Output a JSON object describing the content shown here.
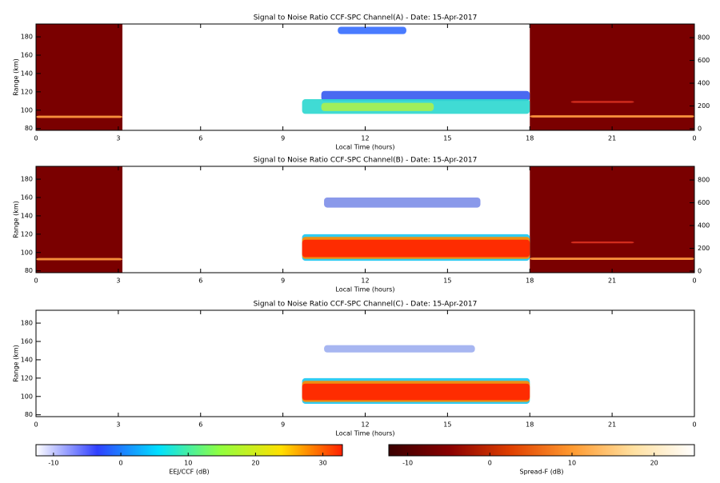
{
  "chart_data": [
    {
      "type": "heatmap",
      "title": "Signal to Noise Ratio CCF-SPC Channel(A) - Date: 15-Apr-2017",
      "xlabel": "Local Time (hours)",
      "ylabel": "Range (km)",
      "xlim": [
        0,
        24
      ],
      "xticks": [
        0,
        3,
        6,
        9,
        12,
        15,
        18,
        21,
        {
          "value": 24,
          "label": "0"
        }
      ],
      "ylim": [
        78,
        194
      ],
      "yticks": [
        80,
        100,
        120,
        140,
        160,
        180
      ],
      "y2lim": [
        -14,
        920
      ],
      "y2ticks": [
        0,
        200,
        400,
        600,
        800
      ],
      "spread_f_blocks": [
        [
          0,
          3.15,
          "#7a0000"
        ],
        [
          18,
          24,
          "#7a0000"
        ]
      ],
      "echoes": [
        [
          0,
          3.15,
          91.5,
          94,
          "#ff9a40"
        ],
        [
          18,
          24,
          92,
          94.5,
          "#ff9a40"
        ],
        [
          19.5,
          21.8,
          108,
          110,
          "#d83020"
        ],
        [
          10.4,
          18,
          110,
          121,
          "#3a5cf0"
        ],
        [
          9.7,
          18,
          96,
          112,
          "#30d8d0"
        ],
        [
          10.4,
          14.5,
          99,
          108,
          "#a8f050"
        ],
        [
          11,
          13.5,
          183,
          191,
          "#3a70ff"
        ]
      ]
    },
    {
      "type": "heatmap",
      "title": "Signal to Noise Ratio CCF-SPC Channel(B) - Date: 15-Apr-2017",
      "xlabel": "Local Time (hours)",
      "ylabel": "Range (km)",
      "xlim": [
        0,
        24
      ],
      "xticks": [
        0,
        3,
        6,
        9,
        12,
        15,
        18,
        21,
        {
          "value": 24,
          "label": "0"
        }
      ],
      "ylim": [
        78,
        194
      ],
      "yticks": [
        80,
        100,
        120,
        140,
        160,
        180
      ],
      "y2lim": [
        -14,
        920
      ],
      "y2ticks": [
        0,
        200,
        400,
        600,
        800
      ],
      "spread_f_blocks": [
        [
          0,
          3.15,
          "#7a0000"
        ],
        [
          18,
          24,
          "#7a0000"
        ]
      ],
      "echoes": [
        [
          0,
          3.15,
          91.5,
          94,
          "#ff9a40"
        ],
        [
          18,
          24,
          92,
          94.5,
          "#ff9a40"
        ],
        [
          19.5,
          21.8,
          110,
          112,
          "#d83020"
        ],
        [
          10.5,
          16.2,
          149,
          160,
          "#8090e8"
        ],
        [
          9.7,
          18,
          91,
          120,
          "#20c8f0"
        ],
        [
          9.7,
          18,
          93,
          117,
          "#ff8a00"
        ],
        [
          9.7,
          18,
          95,
          114,
          "#ff2400"
        ]
      ]
    },
    {
      "type": "heatmap",
      "title": "Signal to Noise Ratio CCF-SPC Channel(C) - Date: 15-Apr-2017",
      "xlabel": "Local Time (hours)",
      "ylabel": "Range (km)",
      "xlim": [
        0,
        24
      ],
      "xticks": [
        0,
        3,
        6,
        9,
        12,
        15,
        18,
        21,
        {
          "value": 24,
          "label": "0"
        }
      ],
      "ylim": [
        78,
        194
      ],
      "yticks": [
        80,
        100,
        120,
        140,
        160,
        180
      ],
      "spread_f_blocks": [],
      "echoes": [
        [
          10.5,
          16,
          148,
          156,
          "#a0b0f0"
        ],
        [
          9.7,
          18,
          92,
          120,
          "#20c8f0"
        ],
        [
          9.7,
          18,
          94,
          117,
          "#ff8a00"
        ],
        [
          9.7,
          18,
          96,
          114,
          "#ff2400"
        ]
      ]
    }
  ],
  "colorbars": [
    {
      "label": "EEJ/CCF (dB)",
      "lim": [
        -12.6,
        32.9
      ],
      "ticks": [
        -10,
        0,
        10,
        20,
        30
      ],
      "colors": [
        "#ffffff",
        "#3040ff",
        "#00e0ff",
        "#90ff40",
        "#ffe000",
        "#ff2000"
      ]
    },
    {
      "label": "Spread-F (dB)",
      "lim": [
        -12.3,
        24.9
      ],
      "ticks": [
        -10,
        0,
        10,
        20
      ],
      "colors": [
        "#3a0000",
        "#8a0000",
        "#e04000",
        "#ff9a30",
        "#ffe0a0",
        "#ffffff"
      ]
    }
  ]
}
